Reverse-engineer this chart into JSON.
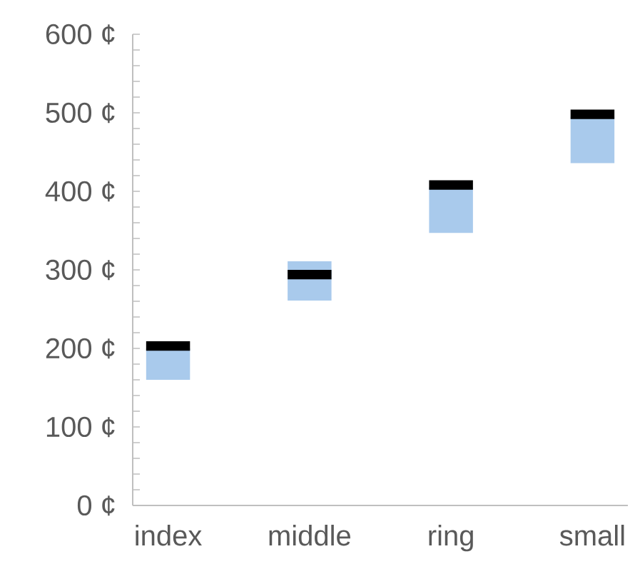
{
  "chart_data": {
    "type": "bar",
    "categories": [
      "index",
      "middle",
      "ring",
      "small"
    ],
    "series": [
      {
        "type": "bar",
        "color": "#a9caec",
        "base": [
          160,
          261,
          347,
          436
        ],
        "values": [
          40,
          50,
          58,
          59
        ]
      },
      {
        "color": "#000000",
        "base": [
          197,
          288,
          402,
          492
        ],
        "values": [
          12,
          12,
          12,
          12
        ]
      }
    ],
    "ylim": [
      0,
      600
    ],
    "yticks": [
      {
        "value": 0,
        "label": "0 ¢"
      },
      {
        "value": 100,
        "label": "100 ¢"
      },
      {
        "value": 200,
        "label": "200 ¢"
      },
      {
        "value": 300,
        "label": "300 ¢"
      },
      {
        "value": 400,
        "label": "400 ¢"
      },
      {
        "value": 500,
        "label": "500 ¢"
      },
      {
        "value": 600,
        "label": "600 ¢"
      }
    ]
  }
}
